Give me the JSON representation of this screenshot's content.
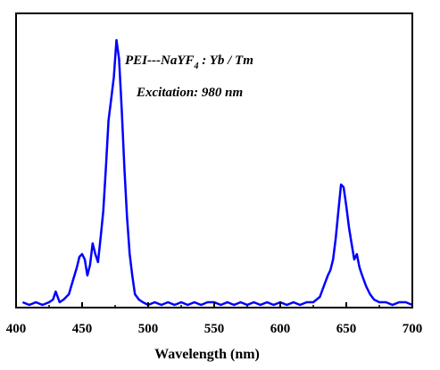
{
  "chart_data": {
    "type": "line",
    "xlabel": "Wavelength (nm)",
    "ylabel": "",
    "xlim": [
      400,
      700
    ],
    "ylim": [
      0,
      1.1
    ],
    "x_ticks": [
      400,
      450,
      500,
      550,
      600,
      650,
      700
    ],
    "x_tick_labels": [
      "400",
      "450",
      "500",
      "550",
      "600",
      "650",
      "700"
    ],
    "y_ticks_shown": false,
    "grid": false,
    "line_color": "#0000ff",
    "annotations": {
      "sample_prefix": "PEI---NaYF",
      "sample_sub": "4",
      "sample_suffix": " : Yb / Tm",
      "excitation": "Excitation: 980 nm"
    },
    "series": [
      {
        "x": [
          405,
          410,
          415,
          420,
          425,
          428,
          430,
          433,
          436,
          440,
          443,
          446,
          448,
          450,
          452,
          454,
          456,
          458,
          460,
          462,
          464,
          466,
          468,
          470,
          472,
          474,
          476,
          478,
          480,
          482,
          484,
          486,
          488,
          490,
          493,
          496,
          500,
          505,
          510,
          515,
          520,
          525,
          530,
          535,
          540,
          545,
          550,
          555,
          560,
          565,
          570,
          575,
          580,
          585,
          590,
          595,
          600,
          605,
          610,
          615,
          620,
          625,
          630,
          633,
          636,
          638,
          640,
          642,
          644,
          646,
          648,
          650,
          652,
          654,
          656,
          658,
          660,
          662,
          665,
          668,
          671,
          675,
          680,
          685,
          690,
          695,
          700
        ],
        "y": [
          0.02,
          0.01,
          0.02,
          0.01,
          0.02,
          0.03,
          0.06,
          0.02,
          0.03,
          0.05,
          0.1,
          0.15,
          0.19,
          0.2,
          0.18,
          0.12,
          0.16,
          0.24,
          0.2,
          0.17,
          0.26,
          0.36,
          0.52,
          0.7,
          0.78,
          0.86,
          1.0,
          0.93,
          0.74,
          0.52,
          0.34,
          0.2,
          0.12,
          0.05,
          0.03,
          0.02,
          0.01,
          0.02,
          0.01,
          0.02,
          0.01,
          0.02,
          0.01,
          0.02,
          0.01,
          0.02,
          0.02,
          0.01,
          0.02,
          0.01,
          0.02,
          0.01,
          0.02,
          0.01,
          0.02,
          0.01,
          0.02,
          0.01,
          0.02,
          0.01,
          0.02,
          0.02,
          0.04,
          0.08,
          0.12,
          0.14,
          0.18,
          0.26,
          0.36,
          0.46,
          0.45,
          0.38,
          0.3,
          0.24,
          0.18,
          0.2,
          0.15,
          0.12,
          0.08,
          0.05,
          0.03,
          0.02,
          0.02,
          0.01,
          0.02,
          0.02,
          0.01
        ]
      }
    ]
  }
}
